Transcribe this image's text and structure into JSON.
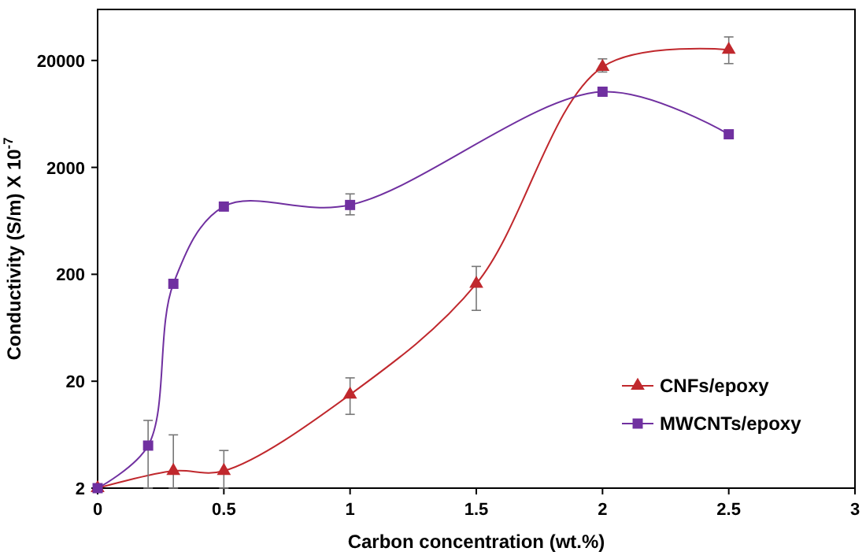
{
  "chart_data": {
    "type": "line",
    "xlabel": "Carbon concentration (wt.%)",
    "ylabel": "Conductivity (S/m) X 10$^{-7}$",
    "log": "y",
    "xlim": [
      0,
      3
    ],
    "xticks": [
      0,
      0.5,
      1,
      1.5,
      2,
      2.5,
      3
    ],
    "ylim": [
      2,
      60000
    ],
    "yticks": [
      2,
      20,
      200,
      2000,
      20000
    ],
    "grid": false,
    "legend": "right",
    "line_style": "solid",
    "series": [
      {
        "name": "CNFs/epoxy",
        "color": "#c0282d",
        "marker": "triangle",
        "x": [
          0,
          0.3,
          0.5,
          1,
          1.5,
          2,
          2.5
        ],
        "values": [
          2,
          2.9,
          2.9,
          15,
          163,
          17400,
          25200
        ],
        "errors": [
          null,
          [
            2,
            6.3
          ],
          [
            2,
            4.5
          ],
          [
            9.8,
            21.5
          ],
          [
            92,
            237
          ],
          [
            15600,
            20700
          ],
          [
            18700,
            33200
          ]
        ]
      },
      {
        "name": "MWCNTs/epoxy",
        "color": "#7030a0",
        "marker": "square",
        "x": [
          0,
          0.2,
          0.3,
          0.5,
          1,
          2,
          2.5
        ],
        "values": [
          2,
          5,
          163,
          860,
          890,
          10200,
          4080
        ],
        "errors": [
          null,
          [
            2,
            8.6
          ],
          null,
          [
            820,
            900
          ],
          [
            720,
            1130
          ],
          null,
          null
        ]
      }
    ]
  }
}
